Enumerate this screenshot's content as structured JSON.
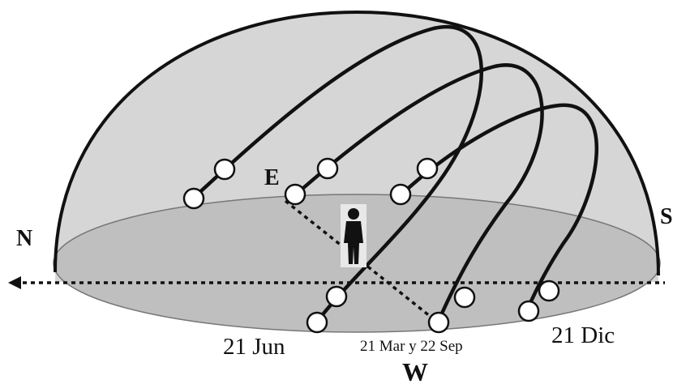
{
  "labels": {
    "north": "N",
    "south": "S",
    "east": "E",
    "west": "W",
    "june": "21 Jun",
    "equinox": "21 Mar y 22 Sep",
    "december": "21 Dic"
  },
  "sun_paths": [
    {
      "name": "21 Jun"
    },
    {
      "name": "21 Mar y 22 Sep"
    },
    {
      "name": "21 Dic"
    }
  ],
  "colors": {
    "dome_fill": "#d3d3d3",
    "floor_fill": "#bdbdbd",
    "stroke": "#111111",
    "sun_marker": "#ffffff"
  },
  "icons": [
    "person-icon",
    "arrow-left-icon",
    "sun-marker-icon"
  ]
}
